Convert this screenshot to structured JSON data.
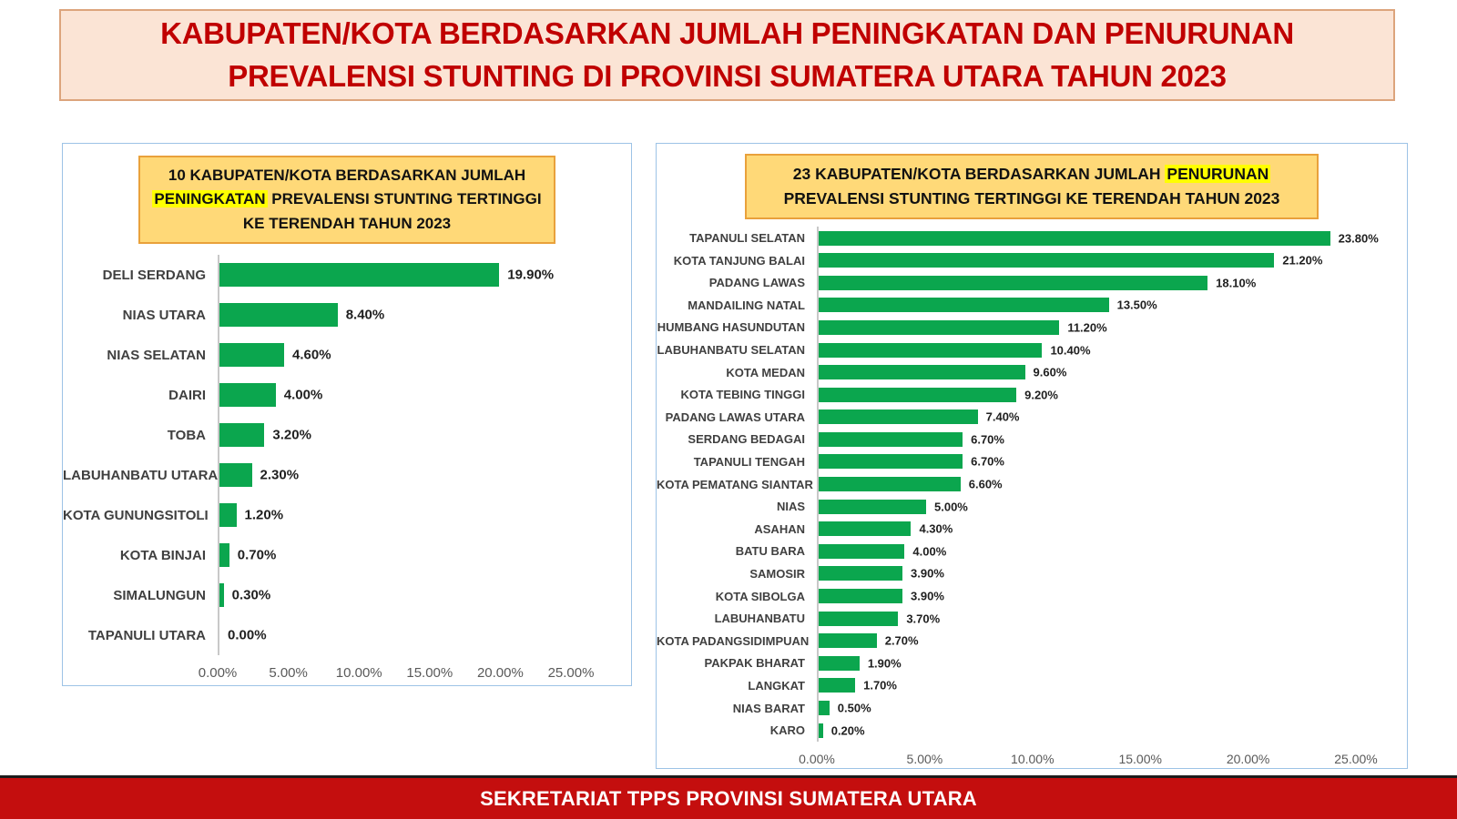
{
  "header": {
    "title": "KABUPATEN/KOTA BERDASARKAN JUMLAH PENINGKATAN DAN PENURUNAN PREVALENSI STUNTING DI PROVINSI SUMATERA UTARA TAHUN 2023"
  },
  "footer": {
    "text": "SEKRETARIAT TPPS PROVINSI SUMATERA UTARA"
  },
  "colors": {
    "header_text_red": "#C00000",
    "header_bg_peach": "#FBE4D5",
    "header_border": "#DCA47C",
    "panel_border_blue": "#9DC3E6",
    "chart_title_bg": "#FFD978",
    "chart_title_border": "#E9A13B",
    "highlight_yellow": "#FFFF00",
    "bar_green": "#0BA64E",
    "banner_red": "#C40E0E",
    "label_gray": "#404040",
    "axis_gray": "#595959"
  },
  "chart_data": [
    {
      "type": "bar",
      "orientation": "horizontal",
      "title": "10 KABUPATEN/KOTA BERDASARKAN JUMLAH PENINGKATAN PREVALENSI STUNTING TERTINGGI KE TERENDAH TAHUN 2023",
      "title_prefix": "10 KABUPATEN/KOTA BERDASARKAN JUMLAH ",
      "title_highlight": "PENINGKATAN",
      "title_suffix": " PREVALENSI STUNTING TERTINGGI KE TERENDAH TAHUN 2023",
      "categories": [
        "DELI SERDANG",
        "NIAS UTARA",
        "NIAS SELATAN",
        "DAIRI",
        "TOBA",
        "LABUHANBATU UTARA",
        "KOTA GUNUNGSITOLI",
        "KOTA BINJAI",
        "SIMALUNGUN",
        "TAPANULI UTARA"
      ],
      "values": [
        19.9,
        8.4,
        4.6,
        4.0,
        3.2,
        2.3,
        1.2,
        0.7,
        0.3,
        0.0
      ],
      "data_labels": [
        "19.90%",
        "8.40%",
        "4.60%",
        "4.00%",
        "3.20%",
        "2.30%",
        "1.20%",
        "0.70%",
        "0.30%",
        "0.00%"
      ],
      "xlabel": "",
      "ylabel": "",
      "xlim": [
        0,
        25
      ],
      "x_ticks": [
        "0.00%",
        "5.00%",
        "10.00%",
        "15.00%",
        "20.00%",
        "25.00%"
      ],
      "grid": false,
      "legend": false,
      "bar_color": "#0BA64E"
    },
    {
      "type": "bar",
      "orientation": "horizontal",
      "title": "23 KABUPATEN/KOTA BERDASARKAN JUMLAH PENURUNAN PREVALENSI STUNTING TERTINGGI KE TERENDAH TAHUN 2023",
      "title_prefix": "23 KABUPATEN/KOTA BERDASARKAN JUMLAH ",
      "title_highlight": "PENURUNAN",
      "title_suffix": " PREVALENSI STUNTING TERTINGGI KE TERENDAH TAHUN 2023",
      "categories": [
        "TAPANULI SELATAN",
        "KOTA TANJUNG BALAI",
        "PADANG LAWAS",
        "MANDAILING NATAL",
        "HUMBANG HASUNDUTAN",
        "LABUHANBATU SELATAN",
        "KOTA MEDAN",
        "KOTA TEBING TINGGI",
        "PADANG LAWAS UTARA",
        "SERDANG BEDAGAI",
        "TAPANULI TENGAH",
        "KOTA PEMATANG SIANTAR",
        "NIAS",
        "ASAHAN",
        "BATU BARA",
        "SAMOSIR",
        "KOTA SIBOLGA",
        "LABUHANBATU",
        "KOTA PADANGSIDIMPUAN",
        "PAKPAK BHARAT",
        "LANGKAT",
        "NIAS BARAT",
        "KARO"
      ],
      "values": [
        23.8,
        21.2,
        18.1,
        13.5,
        11.2,
        10.4,
        9.6,
        9.2,
        7.4,
        6.7,
        6.7,
        6.6,
        5.0,
        4.3,
        4.0,
        3.9,
        3.9,
        3.7,
        2.7,
        1.9,
        1.7,
        0.5,
        0.2
      ],
      "data_labels": [
        "23.80%",
        "21.20%",
        "18.10%",
        "13.50%",
        "11.20%",
        "10.40%",
        "9.60%",
        "9.20%",
        "7.40%",
        "6.70%",
        "6.70%",
        "6.60%",
        "5.00%",
        "4.30%",
        "4.00%",
        "3.90%",
        "3.90%",
        "3.70%",
        "2.70%",
        "1.90%",
        "1.70%",
        "0.50%",
        "0.20%"
      ],
      "xlabel": "",
      "ylabel": "",
      "xlim": [
        0,
        25
      ],
      "x_ticks": [
        "0.00%",
        "5.00%",
        "10.00%",
        "15.00%",
        "20.00%",
        "25.00%"
      ],
      "grid": false,
      "legend": false,
      "bar_color": "#0BA64E"
    }
  ]
}
